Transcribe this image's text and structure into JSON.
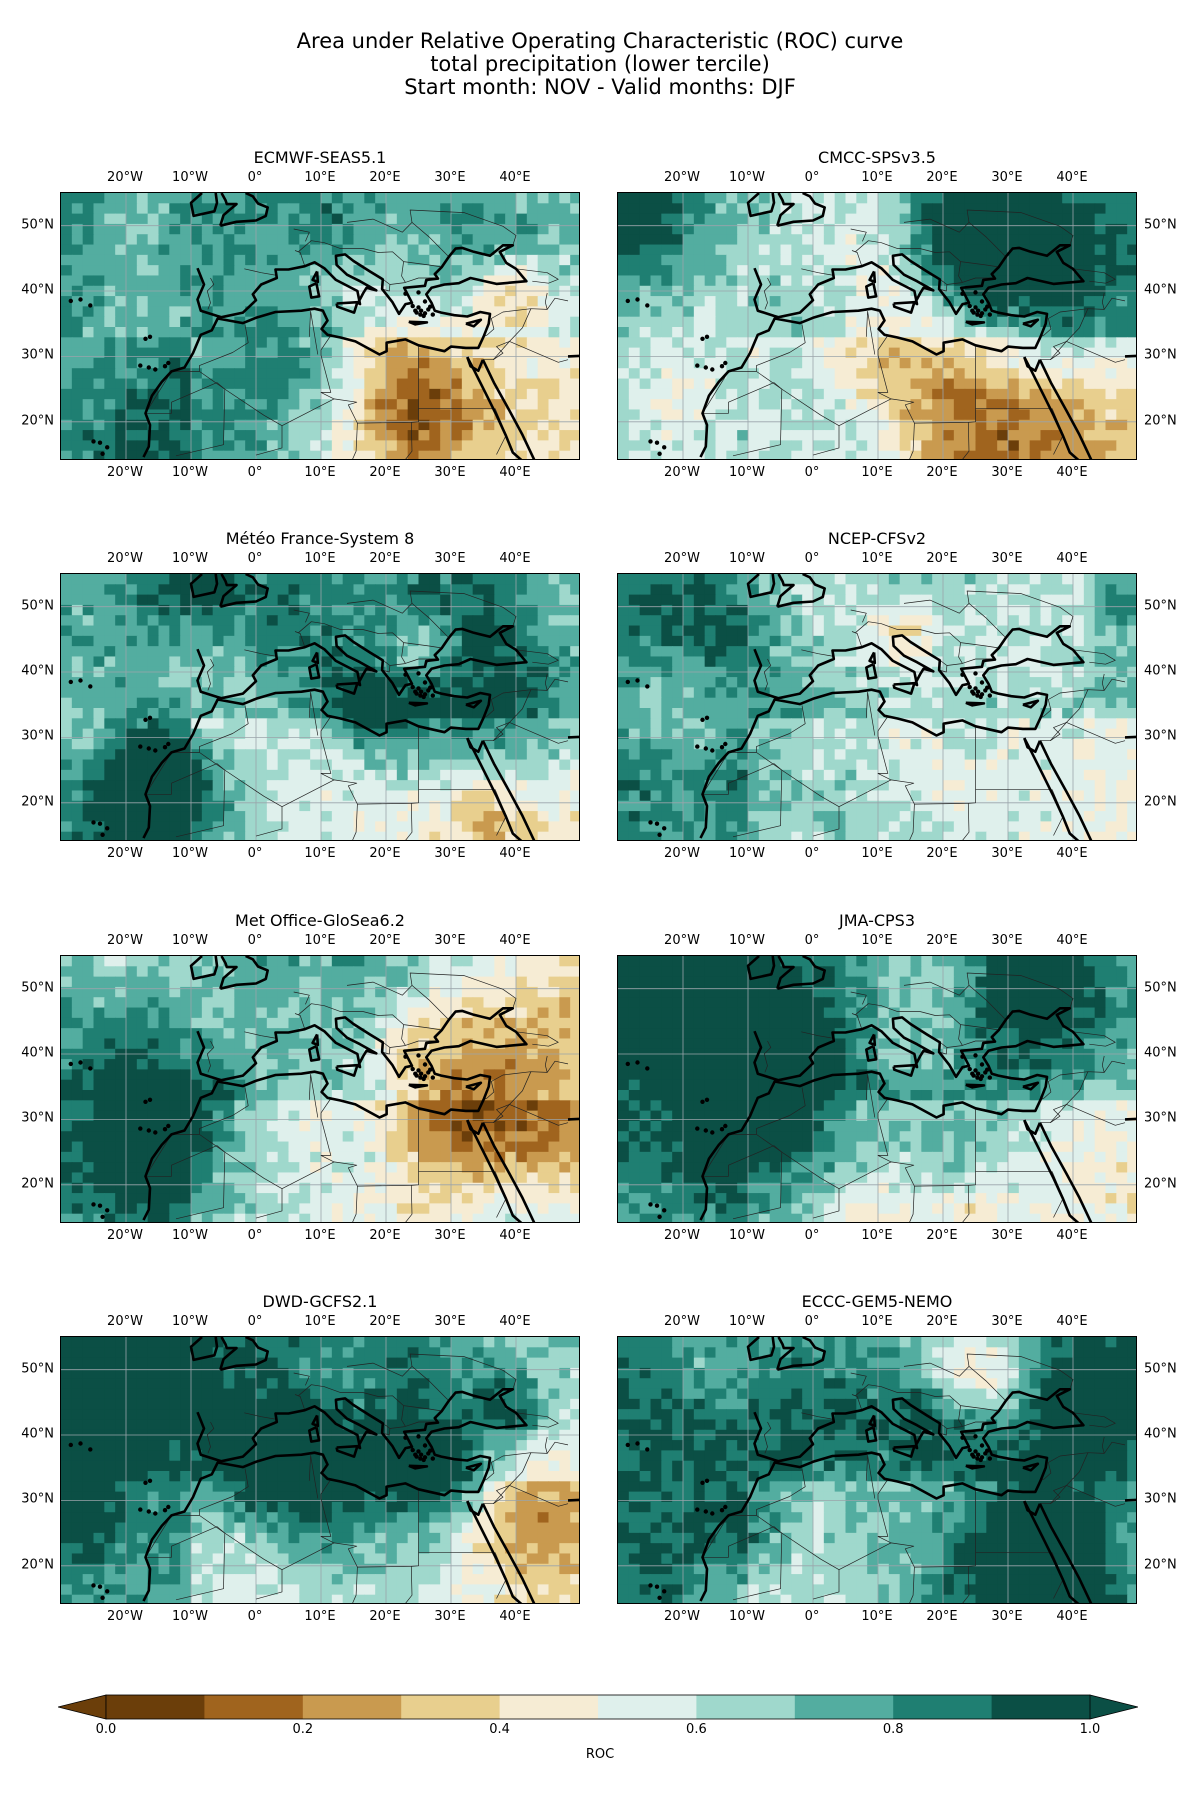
{
  "title": {
    "line1": "Area under Relative Operating Characteristic (ROC) curve",
    "line2": "total precipitation (lower tercile)",
    "line3": "Start month: NOV - Valid months: DJF"
  },
  "axes": {
    "lon_labels": [
      "20°W",
      "10°W",
      "0°",
      "10°E",
      "20°E",
      "30°E",
      "40°E"
    ],
    "lat_labels": [
      "50°N",
      "40°N",
      "30°N",
      "20°N"
    ]
  },
  "panels": [
    {
      "name": "ECMWF-SEAS5.1",
      "lat_side": "left",
      "seed": 11
    },
    {
      "name": "CMCC-SPSv3.5",
      "lat_side": "right",
      "seed": 23
    },
    {
      "name": "Météo France-System 8",
      "lat_side": "left",
      "seed": 37
    },
    {
      "name": "NCEP-CFSv2",
      "lat_side": "right",
      "seed": 41
    },
    {
      "name": "Met Office-GloSea6.2",
      "lat_side": "left",
      "seed": 53
    },
    {
      "name": "JMA-CPS3",
      "lat_side": "right",
      "seed": 67
    },
    {
      "name": "DWD-GCFS2.1",
      "lat_side": "left",
      "seed": 79
    },
    {
      "name": "ECCC-GEM5-NEMO",
      "lat_side": "right",
      "seed": 83
    }
  ],
  "colorbar": {
    "label": "ROC",
    "ticks": [
      "0.0",
      "0.2",
      "0.4",
      "0.6",
      "0.8",
      "1.0"
    ],
    "boundaries": [
      0.0,
      0.1,
      0.2,
      0.3,
      0.4,
      0.5,
      0.6,
      0.7,
      0.8,
      0.9,
      1.0
    ],
    "colors": [
      "#6b3e0a",
      "#a0641e",
      "#c99a4f",
      "#e8cf8e",
      "#f6ecd4",
      "#dff0ec",
      "#9fd8cc",
      "#53ada0",
      "#1f7f72",
      "#0b4f45"
    ],
    "extend": "both"
  },
  "map_extent": {
    "lon": [
      -30,
      50
    ],
    "lat": [
      14,
      55
    ]
  }
}
